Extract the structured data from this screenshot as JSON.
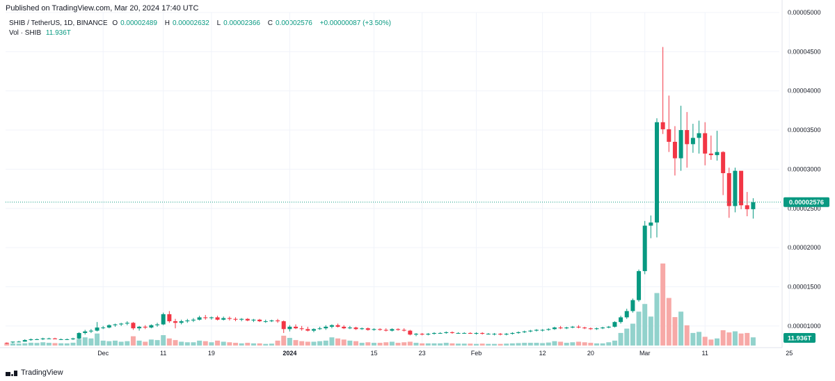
{
  "header": {
    "published": "Published on TradingView.com, Mar 20, 2024 17:40 UTC",
    "symbol": "SHIB / TetherUS, 1D, BINANCE",
    "o_label": "O",
    "o_val": "0.00002489",
    "h_label": "H",
    "h_val": "0.00002632",
    "l_label": "L",
    "l_val": "0.00002366",
    "c_label": "C",
    "c_val": "0.00002576",
    "change": "+0.00000087 (+3.50%)",
    "vol_label": "Vol · SHIB",
    "vol_val": "11.936T"
  },
  "footer": {
    "brand": "TradingView"
  },
  "colors": {
    "up": "#089981",
    "down": "#f23645",
    "vol_up": "#92d2cc",
    "vol_down": "#f7a9a7",
    "grid": "#f0f3fa",
    "axis_text": "#131722"
  },
  "chart_data": {
    "type": "candlestick",
    "ylim": [
      7.5e-06,
      5e-05
    ],
    "y_ticks": [
      "0.00001000",
      "0.00001500",
      "0.00002000",
      "0.00002500",
      "0.00003000",
      "0.00003500",
      "0.00004000",
      "0.00004500",
      "0.00005000"
    ],
    "x_ticks": [
      {
        "label": "Dec",
        "i": 16
      },
      {
        "label": "11",
        "i": 26
      },
      {
        "label": "19",
        "i": 34
      },
      {
        "label": "2024",
        "i": 47
      },
      {
        "label": "15",
        "i": 61
      },
      {
        "label": "23",
        "i": 69
      },
      {
        "label": "Feb",
        "i": 78
      },
      {
        "label": "12",
        "i": 89
      },
      {
        "label": "20",
        "i": 97
      },
      {
        "label": "Mar",
        "i": 106
      },
      {
        "label": "11",
        "i": 116
      },
      {
        "label": "25",
        "i": 130
      }
    ],
    "last_price_label": "0.00002576",
    "last_volume_label": "11.936T",
    "volume_scale_max": 15000,
    "candles": [
      [
        7.85e-06,
        7.9e-06,
        7.7e-06,
        7.82e-06,
        350
      ],
      [
        7.9e-06,
        8e-06,
        7.8e-06,
        8e-06,
        380
      ],
      [
        8e-06,
        8.1e-06,
        7.9e-06,
        8e-06,
        350
      ],
      [
        8e-06,
        8.3e-06,
        8e-06,
        8.2e-06,
        420
      ],
      [
        8.2e-06,
        8.4e-06,
        8.1e-06,
        8.3e-06,
        520
      ],
      [
        8.3e-06,
        8.4e-06,
        8.2e-06,
        8.3e-06,
        480
      ],
      [
        8.3e-06,
        8.5e-06,
        8.2e-06,
        8.4e-06,
        600
      ],
      [
        8.4e-06,
        8.5e-06,
        8.3e-06,
        8.4e-06,
        500
      ],
      [
        8.4e-06,
        8.5e-06,
        8.3e-06,
        8.3e-06,
        450
      ],
      [
        8.3e-06,
        8.4e-06,
        8.2e-06,
        8.3e-06,
        420
      ],
      [
        8.3e-06,
        8.4e-06,
        8.2e-06,
        8.3e-06,
        400
      ],
      [
        8.3e-06,
        8.5e-06,
        8.2e-06,
        8.4e-06,
        520
      ],
      [
        8.4e-06,
        9.2e-06,
        8.3e-06,
        9.1e-06,
        1200
      ],
      [
        9.1e-06,
        9.5e-06,
        8.9e-06,
        9.3e-06,
        1500
      ],
      [
        9.3e-06,
        9.6e-06,
        9.1e-06,
        9.4e-06,
        1300
      ],
      [
        9.4e-06,
        1.05e-05,
        9.3e-06,
        9.8e-06,
        2200
      ],
      [
        9.8e-06,
        1e-05,
        9.6e-06,
        9.8e-06,
        900
      ],
      [
        9.8e-06,
        1.02e-05,
        9.7e-06,
        1.01e-05,
        800
      ],
      [
        1.01e-05,
        1.03e-05,
        9.9e-06,
        1.02e-05,
        900
      ],
      [
        1.02e-05,
        1.04e-05,
        1e-05,
        1.03e-05,
        700
      ],
      [
        1.03e-05,
        1.06e-05,
        1.01e-05,
        1.04e-05,
        800
      ],
      [
        1.04e-05,
        1.05e-05,
        9.5e-06,
        9.7e-06,
        1700
      ],
      [
        9.7e-06,
        1e-05,
        9.4e-06,
        9.9e-06,
        900
      ],
      [
        9.9e-06,
        1.01e-05,
        9.6e-06,
        9.8e-06,
        700
      ],
      [
        9.8e-06,
        1.02e-05,
        9.7e-06,
        1.01e-05,
        1100
      ],
      [
        1.01e-05,
        1.04e-05,
        9.9e-06,
        1.02e-05,
        1000
      ],
      [
        1.02e-05,
        1.17e-05,
        1.01e-05,
        1.15e-05,
        1900
      ],
      [
        1.15e-05,
        1.19e-05,
        1.04e-05,
        1.06e-05,
        1300
      ],
      [
        1.06e-05,
        1.09e-05,
        9.7e-06,
        1.04e-05,
        1000
      ],
      [
        1.04e-05,
        1.08e-05,
        1.02e-05,
        1.06e-05,
        700
      ],
      [
        1.06e-05,
        1.09e-05,
        1.04e-05,
        1.07e-05,
        600
      ],
      [
        1.07e-05,
        1.1e-05,
        1.05e-05,
        1.08e-05,
        600
      ],
      [
        1.08e-05,
        1.13e-05,
        1.07e-05,
        1.11e-05,
        900
      ],
      [
        1.11e-05,
        1.14e-05,
        1.08e-05,
        1.1e-05,
        800
      ],
      [
        1.1e-05,
        1.12e-05,
        1.08e-05,
        1.11e-05,
        600
      ],
      [
        1.11e-05,
        1.13e-05,
        1.07e-05,
        1.08e-05,
        900
      ],
      [
        1.08e-05,
        1.12e-05,
        1.07e-05,
        1.1e-05,
        700
      ],
      [
        1.1e-05,
        1.12e-05,
        1.07e-05,
        1.09e-05,
        600
      ],
      [
        1.09e-05,
        1.11e-05,
        1.06e-05,
        1.08e-05,
        500
      ],
      [
        1.08e-05,
        1.1e-05,
        1.06e-05,
        1.09e-05,
        400
      ],
      [
        1.09e-05,
        1.1e-05,
        1.06e-05,
        1.07e-05,
        500
      ],
      [
        1.07e-05,
        1.09e-05,
        1.05e-05,
        1.08e-05,
        400
      ],
      [
        1.08e-05,
        1.09e-05,
        1.05e-05,
        1.06e-05,
        400
      ],
      [
        1.06e-05,
        1.08e-05,
        1.04e-05,
        1.06e-05,
        300
      ],
      [
        1.06e-05,
        1.08e-05,
        1.05e-05,
        1.07e-05,
        350
      ],
      [
        1.07e-05,
        1.09e-05,
        1.04e-05,
        1.06e-05,
        900
      ],
      [
        1.06e-05,
        1.07e-05,
        9.1e-06,
        9.6e-06,
        1800
      ],
      [
        9.6e-06,
        1.01e-05,
        9.3e-06,
        9.9e-06,
        1400
      ],
      [
        9.9e-06,
        1.02e-05,
        9.6e-06,
        9.7e-06,
        1000
      ],
      [
        9.7e-06,
        1e-05,
        9.4e-06,
        9.6e-06,
        800
      ],
      [
        9.6e-06,
        9.9e-06,
        9.3e-06,
        9.4e-06,
        700
      ],
      [
        9.4e-06,
        9.7e-06,
        9.2e-06,
        9.6e-06,
        700
      ],
      [
        9.6e-06,
        9.9e-06,
        9.5e-06,
        9.7e-06,
        800
      ],
      [
        9.7e-06,
        1.01e-05,
        9.5e-06,
        9.9e-06,
        900
      ],
      [
        9.9e-06,
        1.02e-05,
        9.7e-06,
        1.01e-05,
        1500
      ],
      [
        1.01e-05,
        1.03e-05,
        9.8e-06,
        9.9e-06,
        1300
      ],
      [
        9.9e-06,
        1.01e-05,
        9.6e-06,
        9.7e-06,
        1100
      ],
      [
        9.7e-06,
        1e-05,
        9.6e-06,
        9.8e-06,
        900
      ],
      [
        9.8e-06,
        9.9e-06,
        9.5e-06,
        9.6e-06,
        800
      ],
      [
        9.6e-06,
        9.8e-06,
        9.5e-06,
        9.7e-06,
        500
      ],
      [
        9.7e-06,
        9.8e-06,
        9.4e-06,
        9.5e-06,
        600
      ],
      [
        9.5e-06,
        9.7e-06,
        9.4e-06,
        9.6e-06,
        500
      ],
      [
        9.6e-06,
        9.7e-06,
        9.4e-06,
        9.5e-06,
        500
      ],
      [
        9.5e-06,
        9.7e-06,
        9.3e-06,
        9.4e-06,
        600
      ],
      [
        9.4e-06,
        9.7e-06,
        9.3e-06,
        9.6e-06,
        700
      ],
      [
        9.6e-06,
        9.7e-06,
        9.4e-06,
        9.5e-06,
        500
      ],
      [
        9.5e-06,
        9.7e-06,
        9.3e-06,
        9.4e-06,
        600
      ],
      [
        9.4e-06,
        9.5e-06,
        8.8e-06,
        8.9e-06,
        700
      ],
      [
        8.9e-06,
        9.1e-06,
        8.7e-06,
        9e-06,
        500
      ],
      [
        9e-06,
        9.1e-06,
        8.8e-06,
        8.9e-06,
        400
      ],
      [
        8.9e-06,
        9.1e-06,
        8.8e-06,
        9e-06,
        400
      ],
      [
        9e-06,
        9.2e-06,
        8.9e-06,
        9.1e-06,
        400
      ],
      [
        9.1e-06,
        9.2e-06,
        9e-06,
        9.1e-06,
        400
      ],
      [
        9.1e-06,
        9.3e-06,
        9e-06,
        9.2e-06,
        500
      ],
      [
        9.2e-06,
        9.3e-06,
        9e-06,
        9.1e-06,
        400
      ],
      [
        9.1e-06,
        9.2e-06,
        9e-06,
        9.1e-06,
        350
      ],
      [
        9.1e-06,
        9.2e-06,
        9e-06,
        9.1e-06,
        350
      ],
      [
        9.1e-06,
        9.2e-06,
        9e-06,
        9e-06,
        350
      ],
      [
        9e-06,
        9.2e-06,
        8.9e-06,
        9.1e-06,
        300
      ],
      [
        9.1e-06,
        9.2e-06,
        8.9e-06,
        9e-06,
        350
      ],
      [
        9e-06,
        9.1e-06,
        8.9e-06,
        9e-06,
        300
      ],
      [
        9e-06,
        9.1e-06,
        8.8e-06,
        9e-06,
        300
      ],
      [
        9e-06,
        9.1e-06,
        8.8e-06,
        8.9e-06,
        300
      ],
      [
        8.9e-06,
        9.1e-06,
        8.8e-06,
        9e-06,
        350
      ],
      [
        9e-06,
        9.2e-06,
        8.9e-06,
        9.1e-06,
        400
      ],
      [
        9.1e-06,
        9.3e-06,
        9e-06,
        9.2e-06,
        450
      ],
      [
        9.2e-06,
        9.4e-06,
        9.1e-06,
        9.3e-06,
        500
      ],
      [
        9.3e-06,
        9.5e-06,
        9.2e-06,
        9.4e-06,
        500
      ],
      [
        9.4e-06,
        9.6e-06,
        9.3e-06,
        9.5e-06,
        500
      ],
      [
        9.5e-06,
        9.6e-06,
        9.3e-06,
        9.5e-06,
        450
      ],
      [
        9.5e-06,
        9.7e-06,
        9.4e-06,
        9.6e-06,
        550
      ],
      [
        9.6e-06,
        9.9e-06,
        9.5e-06,
        9.8e-06,
        800
      ],
      [
        9.8e-06,
        1e-05,
        9.6e-06,
        9.7e-06,
        700
      ],
      [
        9.7e-06,
        9.9e-06,
        9.6e-06,
        9.8e-06,
        500
      ],
      [
        9.8e-06,
        1e-05,
        9.7e-06,
        9.9e-06,
        600
      ],
      [
        9.9e-06,
        1.01e-05,
        9.7e-06,
        9.8e-06,
        700
      ],
      [
        9.8e-06,
        9.9e-06,
        9.6e-06,
        9.7e-06,
        600
      ],
      [
        9.7e-06,
        9.8e-06,
        9.5e-06,
        9.6e-06,
        500
      ],
      [
        9.6e-06,
        9.8e-06,
        9.5e-06,
        9.7e-06,
        400
      ],
      [
        9.7e-06,
        9.9e-06,
        9.6e-06,
        9.8e-06,
        400
      ],
      [
        9.8e-06,
        1e-05,
        9.7e-06,
        9.9e-06,
        600
      ],
      [
        9.9e-06,
        1.06e-05,
        9.8e-06,
        1.05e-05,
        900
      ],
      [
        1.05e-05,
        1.13e-05,
        1.03e-05,
        1.11e-05,
        2300
      ],
      [
        1.11e-05,
        1.22e-05,
        1.09e-05,
        1.19e-05,
        3100
      ],
      [
        1.19e-05,
        1.35e-05,
        1.17e-05,
        1.33e-05,
        4000
      ],
      [
        1.33e-05,
        1.72e-05,
        1.31e-05,
        1.7e-05,
        6200
      ],
      [
        1.7e-05,
        2.34e-05,
        1.66e-05,
        2.28e-05,
        7600
      ],
      [
        2.28e-05,
        2.41e-05,
        2.12e-05,
        2.32e-05,
        5300
      ],
      [
        2.32e-05,
        3.65e-05,
        2.13e-05,
        3.6e-05,
        9600
      ],
      [
        3.6e-05,
        4.56e-05,
        3.45e-05,
        3.51e-05,
        15000
      ],
      [
        3.51e-05,
        3.94e-05,
        3.22e-05,
        3.35e-05,
        8700
      ],
      [
        3.35e-05,
        3.55e-05,
        2.92e-05,
        3.14e-05,
        5200
      ],
      [
        3.14e-05,
        3.81e-05,
        2.98e-05,
        3.5e-05,
        6200
      ],
      [
        3.5e-05,
        3.73e-05,
        3.02e-05,
        3.32e-05,
        3700
      ],
      [
        3.32e-05,
        3.58e-05,
        3.21e-05,
        3.4e-05,
        2300
      ],
      [
        3.4e-05,
        3.62e-05,
        3.2e-05,
        3.46e-05,
        2500
      ],
      [
        3.46e-05,
        3.6e-05,
        3.05e-05,
        3.2e-05,
        1600
      ],
      [
        3.2e-05,
        3.43e-05,
        3.12e-05,
        3.18e-05,
        1100
      ],
      [
        3.18e-05,
        3.49e-05,
        3.11e-05,
        3.22e-05,
        1300
      ],
      [
        3.22e-05,
        3.23e-05,
        2.67e-05,
        2.95e-05,
        2800
      ],
      [
        2.95e-05,
        3.02e-05,
        2.38e-05,
        2.53e-05,
        2400
      ],
      [
        2.53e-05,
        3.02e-05,
        2.45e-05,
        2.98e-05,
        2600
      ],
      [
        2.98e-05,
        2.96e-05,
        2.49e-05,
        2.54e-05,
        2200
      ],
      [
        2.54e-05,
        2.71e-05,
        2.4e-05,
        2.49e-05,
        2300
      ],
      [
        2.49e-05,
        2.63e-05,
        2.37e-05,
        2.58e-05,
        1500
      ]
    ]
  }
}
